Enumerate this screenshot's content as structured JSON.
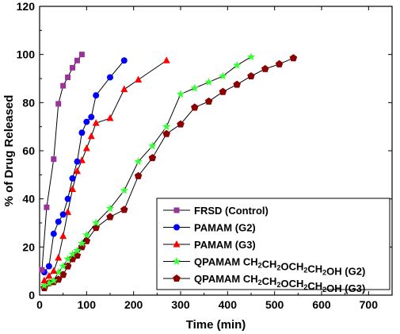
{
  "chart_data": {
    "type": "line",
    "xlabel": "Time (min)",
    "ylabel": "% of Drug Released",
    "xlim": [
      0,
      750
    ],
    "ylim": [
      0,
      120
    ],
    "xticks": [
      0,
      100,
      200,
      300,
      400,
      500,
      600,
      700
    ],
    "yticks": [
      0,
      20,
      40,
      60,
      80,
      100,
      120
    ],
    "grid": false,
    "legend_position": "bottom-right",
    "series": [
      {
        "name": "FRSD (Control)",
        "color": "#993399",
        "marker": "square",
        "x": [
          5,
          15,
          30,
          40,
          50,
          60,
          70,
          80,
          90
        ],
        "y": [
          10.5,
          36.5,
          56.5,
          79.5,
          87,
          90.5,
          94.5,
          97.5,
          100
        ]
      },
      {
        "name": "PAMAM (G2)",
        "color": "#0000ff",
        "marker": "circle",
        "x": [
          10,
          20,
          30,
          40,
          50,
          60,
          70,
          80,
          90,
          100,
          110,
          120,
          150,
          180
        ],
        "y": [
          9.5,
          12,
          25.5,
          30.5,
          33.5,
          40,
          48.5,
          55.5,
          67.5,
          72,
          74,
          83,
          90.5,
          97.5
        ]
      },
      {
        "name": "PAMAM (G3)",
        "color": "#ff0000",
        "marker": "triangle",
        "x": [
          10,
          20,
          30,
          40,
          50,
          60,
          70,
          80,
          90,
          100,
          110,
          120,
          150,
          180,
          210,
          270
        ],
        "y": [
          6,
          8,
          10,
          15.5,
          24.5,
          34.5,
          44,
          51.5,
          56,
          61,
          66,
          71.5,
          73.5,
          85.5,
          89.5,
          97.5
        ]
      },
      {
        "name": "QPAMAM CH₂CH₂OCH₂CH₂OH (G2)",
        "color": "#33ff33",
        "marker": "star",
        "x": [
          10,
          20,
          30,
          40,
          50,
          60,
          70,
          80,
          90,
          100,
          120,
          150,
          180,
          210,
          240,
          270,
          300,
          330,
          360,
          390,
          420,
          450
        ],
        "y": [
          4,
          5,
          6,
          9.5,
          12,
          15,
          17,
          18.5,
          21.5,
          25,
          30,
          36,
          43.5,
          55.5,
          62,
          70,
          83.5,
          86,
          88.5,
          91,
          95.5,
          99
        ]
      },
      {
        "name": "QPAMAM CH₂CH₂OCH₂CH₂OH (G3)",
        "color": "#8b0000",
        "marker": "pentagon",
        "x": [
          10,
          20,
          30,
          40,
          50,
          60,
          70,
          80,
          90,
          100,
          120,
          150,
          180,
          210,
          240,
          270,
          300,
          330,
          360,
          390,
          420,
          450,
          480,
          510,
          540
        ],
        "y": [
          3,
          5,
          5.5,
          6.5,
          8.5,
          12,
          15,
          16.5,
          20,
          22.5,
          28,
          32.5,
          35.5,
          49.5,
          57,
          67,
          71,
          78,
          80.5,
          84.5,
          87.5,
          91,
          94,
          96,
          98.5
        ]
      }
    ],
    "legend": {
      "entries": [
        {
          "prefix": "FRSD (Control)",
          "sub1": "",
          "mid1": "",
          "sub2": "",
          "mid2": "",
          "sub3": "",
          "mid3": "",
          "sub4": "",
          "suffix": ""
        },
        {
          "prefix": "PAMAM (G2)",
          "sub1": "",
          "mid1": "",
          "sub2": "",
          "mid2": "",
          "sub3": "",
          "mid3": "",
          "sub4": "",
          "suffix": ""
        },
        {
          "prefix": "PAMAM (G3)",
          "sub1": "",
          "mid1": "",
          "sub2": "",
          "mid2": "",
          "sub3": "",
          "mid3": "",
          "sub4": "",
          "suffix": ""
        },
        {
          "prefix": "QPAMAM CH",
          "sub1": "2",
          "mid1": "CH",
          "sub2": "2",
          "mid2": "OCH",
          "sub3": "2",
          "mid3": "CH",
          "sub4": "2",
          "suffix": "OH (G2)"
        },
        {
          "prefix": "QPAMAM CH",
          "sub1": "2",
          "mid1": "CH",
          "sub2": "2",
          "mid2": "OCH",
          "sub3": "2",
          "mid3": "CH",
          "sub4": "2",
          "suffix": "OH (G3)"
        }
      ]
    }
  }
}
